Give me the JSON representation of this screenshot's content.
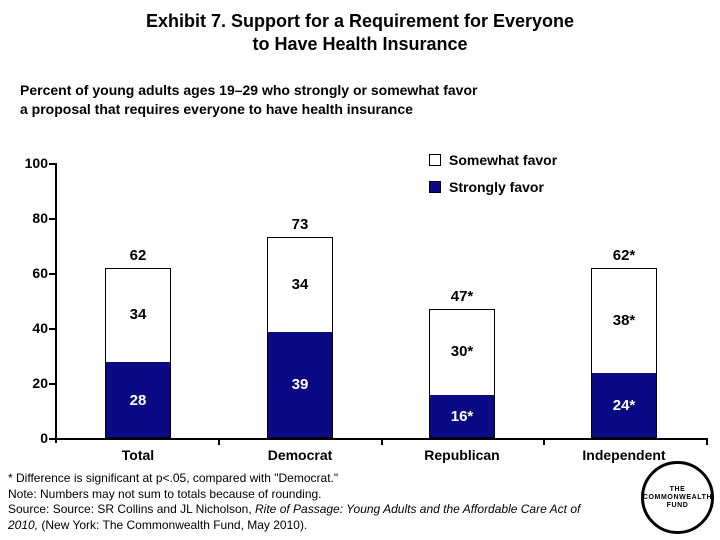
{
  "title": "Exhibit 7. Support for a Requirement for Everyone\nto Have Health Insurance",
  "subtitle": "Percent of young adults ages 19–29 who strongly or somewhat favor\na proposal that requires everyone to have health insurance",
  "legend": {
    "somewhat_label": "Somewhat favor",
    "strongly_label": "Strongly favor"
  },
  "colors": {
    "strongly_favor": "#0a0a84",
    "somewhat_favor": "#ffffff",
    "axis": "#000000"
  },
  "chart_data": {
    "type": "bar",
    "stacked": true,
    "title": "Exhibit 7. Support for a Requirement for Everyone to Have Health Insurance",
    "subtitle": "Percent of young adults ages 19–29 who strongly or somewhat favor a proposal that requires everyone to have health insurance",
    "categories": [
      "Total",
      "Democrat",
      "Republican",
      "Independent"
    ],
    "series": [
      {
        "name": "Strongly favor",
        "values": [
          28,
          39,
          16,
          24
        ],
        "labels": [
          "28",
          "39",
          "16*",
          "24*"
        ],
        "color": "#0a0a84"
      },
      {
        "name": "Somewhat favor",
        "values": [
          34,
          34,
          30,
          38
        ],
        "labels": [
          "34",
          "34",
          "30*",
          "38*"
        ],
        "color": "#ffffff"
      }
    ],
    "totals": [
      62,
      73,
      47,
      62
    ],
    "total_labels": [
      "62",
      "73",
      "47*",
      "62*"
    ],
    "ylim": [
      0,
      100
    ],
    "yticks": [
      0,
      20,
      40,
      60,
      80,
      100
    ],
    "xlabel": "",
    "ylabel": "",
    "grid": false,
    "legend_position": "top-right"
  },
  "footnotes": {
    "significance": "* Difference is significant at p<.05, compared with \"Democrat.\"",
    "note": "Note: Numbers may not sum to totals because of rounding.",
    "source_prefix": "Source: Source: SR Collins and JL Nicholson, ",
    "source_italic_line1": "Rite of Passage: Young Adults and the Affordable Care Act of",
    "source_italic_line2": "2010,",
    "source_suffix": " (New York: The Commonwealth Fund, May 2010)."
  },
  "logo": {
    "text": "THE\nCOMMONWEALTH\nFUND"
  }
}
